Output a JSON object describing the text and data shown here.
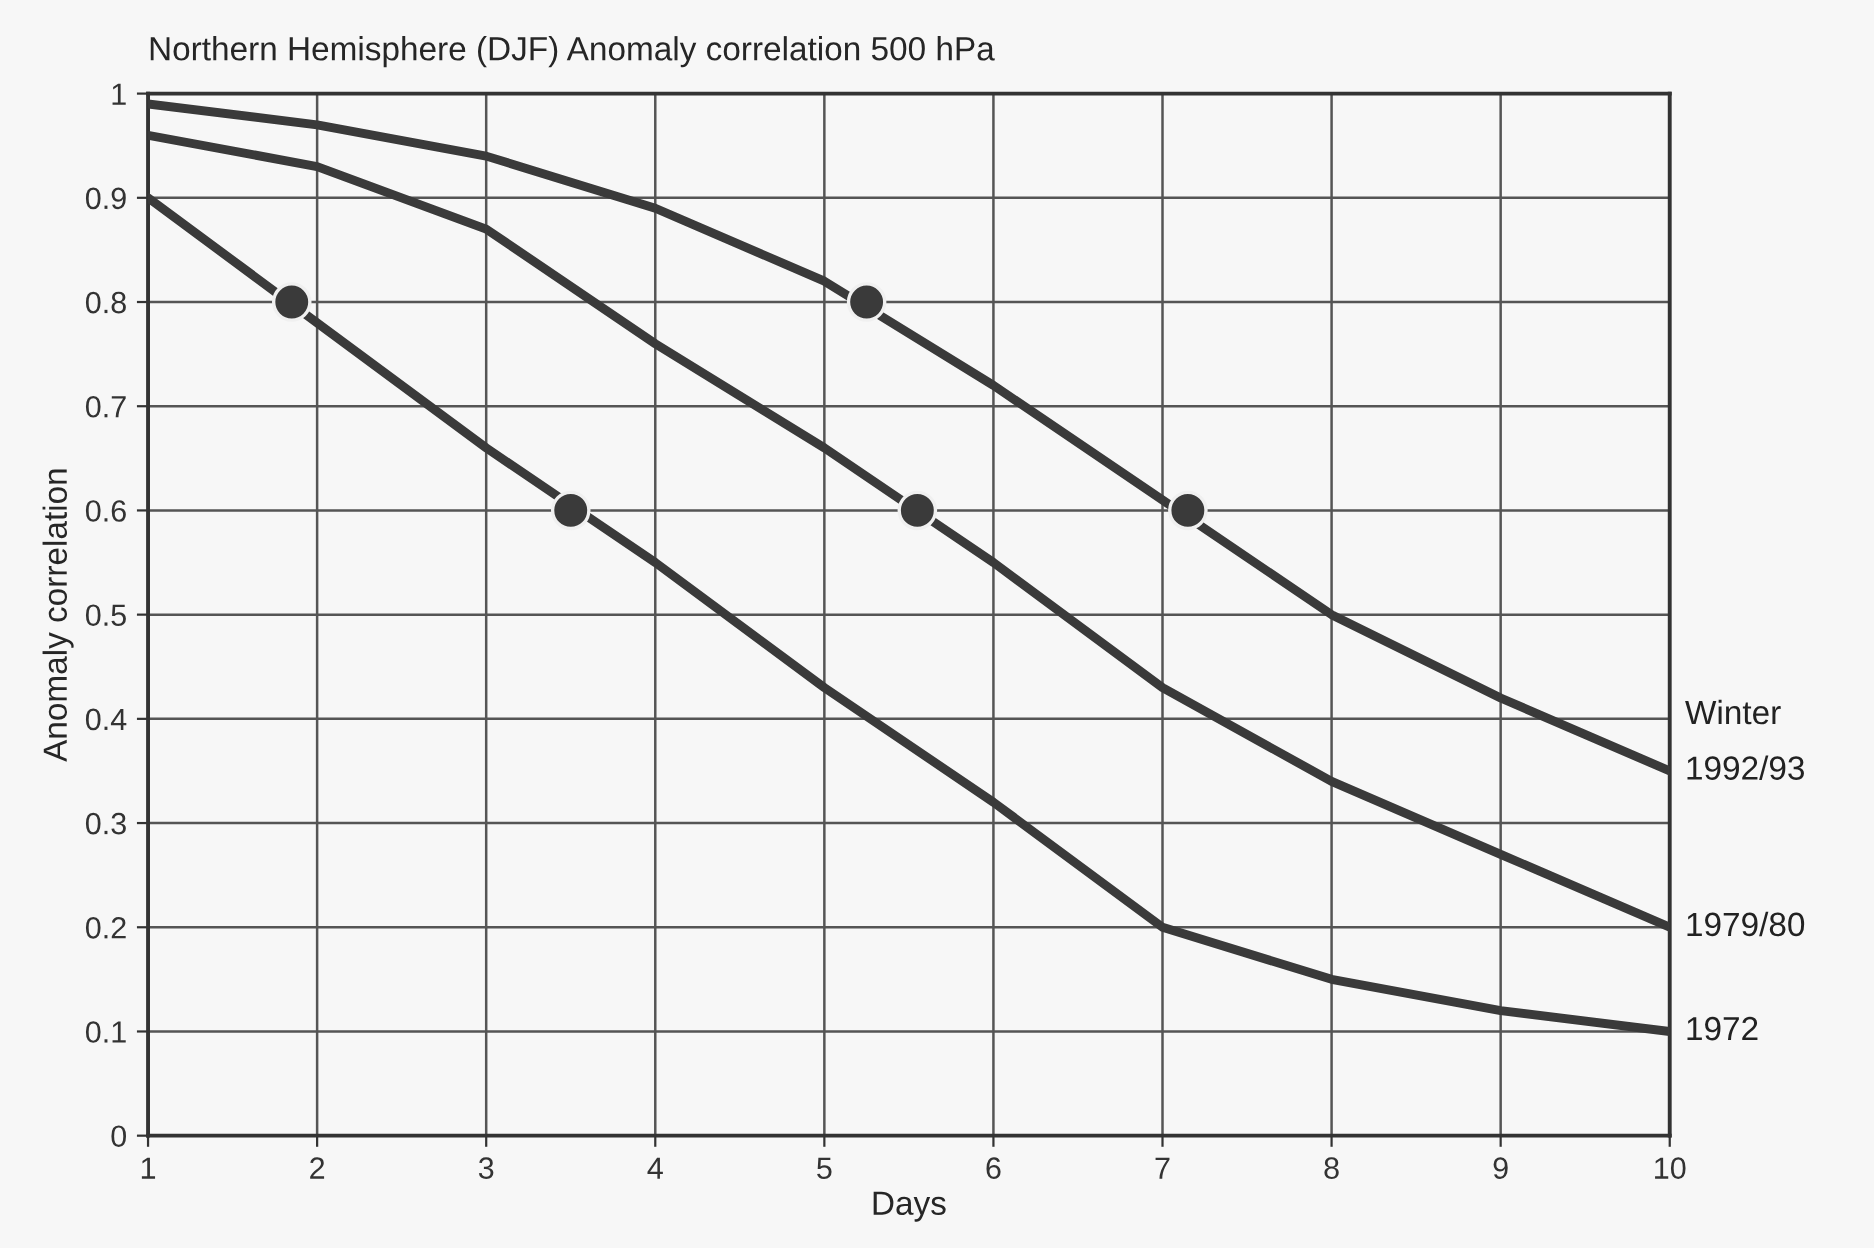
{
  "chart_data": {
    "type": "line",
    "title": "Northern Hemisphere (DJF) Anomaly correlation 500 hPa",
    "xlabel": "Days",
    "ylabel": "Anomaly correlation",
    "x": [
      1,
      2,
      3,
      4,
      5,
      6,
      7,
      8,
      9,
      10
    ],
    "series": [
      {
        "name": "1992/93",
        "color": "#3a3a3a",
        "values": [
          0.99,
          0.97,
          0.94,
          0.89,
          0.82,
          0.72,
          0.61,
          0.5,
          0.42,
          0.35
        ]
      },
      {
        "name": "1979/80",
        "color": "#3a3a3a",
        "values": [
          0.96,
          0.93,
          0.87,
          0.76,
          0.66,
          0.55,
          0.43,
          0.34,
          0.27,
          0.2
        ]
      },
      {
        "name": "1972",
        "color": "#3a3a3a",
        "values": [
          0.9,
          0.78,
          0.66,
          0.55,
          0.43,
          0.32,
          0.2,
          0.15,
          0.12,
          0.1
        ]
      },
      {
        "type": "scatter",
        "color": "#3a3a3a",
        "marker": "circle",
        "x": [
          1.85,
          3.5,
          5.25,
          5.55,
          7.15
        ],
        "values": [
          0.8,
          0.6,
          0.8,
          0.6,
          0.6
        ]
      }
    ],
    "annotations": [
      "Winter"
    ],
    "xlim": [
      1,
      10
    ],
    "xticks": [
      1,
      2,
      3,
      4,
      5,
      6,
      7,
      8,
      9,
      10
    ],
    "ylim": [
      0,
      1
    ],
    "yticks": [
      0,
      0.1,
      0.2,
      0.3,
      0.4,
      0.5,
      0.6,
      0.7,
      0.8,
      0.9,
      1
    ],
    "grid": true,
    "legend": false,
    "line_style": "solid"
  }
}
